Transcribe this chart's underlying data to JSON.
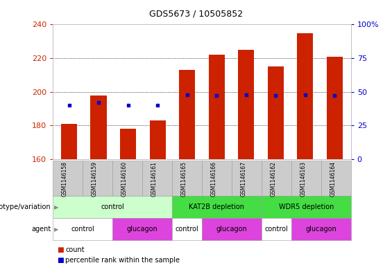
{
  "title": "GDS5673 / 10505852",
  "samples": [
    "GSM1146158",
    "GSM1146159",
    "GSM1146160",
    "GSM1146161",
    "GSM1146165",
    "GSM1146166",
    "GSM1146167",
    "GSM1146162",
    "GSM1146163",
    "GSM1146164"
  ],
  "count_values": [
    181,
    198,
    178,
    183,
    213,
    222,
    225,
    215,
    235,
    221
  ],
  "percentile_values": [
    40,
    42,
    40,
    40,
    48,
    47,
    48,
    47,
    48,
    47
  ],
  "ylim_left": [
    160,
    240
  ],
  "ylim_right": [
    0,
    100
  ],
  "yticks_left": [
    160,
    180,
    200,
    220,
    240
  ],
  "yticks_right": [
    0,
    25,
    50,
    75,
    100
  ],
  "bar_color": "#cc2200",
  "dot_color": "#0000cc",
  "genotype_groups": [
    {
      "label": "control",
      "start": 0,
      "end": 4,
      "color": "#ccffcc"
    },
    {
      "label": "KAT2B depletion",
      "start": 4,
      "end": 7,
      "color": "#44dd44"
    },
    {
      "label": "WDR5 depletion",
      "start": 7,
      "end": 10,
      "color": "#44dd44"
    }
  ],
  "agent_groups": [
    {
      "label": "control",
      "start": 0,
      "end": 2,
      "color": "#ffffff"
    },
    {
      "label": "glucagon",
      "start": 2,
      "end": 4,
      "color": "#dd44dd"
    },
    {
      "label": "control",
      "start": 4,
      "end": 5,
      "color": "#ffffff"
    },
    {
      "label": "glucagon",
      "start": 5,
      "end": 7,
      "color": "#dd44dd"
    },
    {
      "label": "control",
      "start": 7,
      "end": 8,
      "color": "#ffffff"
    },
    {
      "label": "glucagon",
      "start": 8,
      "end": 10,
      "color": "#dd44dd"
    }
  ],
  "label_genotype": "genotype/variation",
  "label_agent": "agent",
  "legend_count": "count",
  "legend_percentile": "percentile rank within the sample",
  "left_axis_color": "#cc2200",
  "right_axis_color": "#0000cc",
  "grid_yticks": [
    180,
    200,
    220
  ]
}
